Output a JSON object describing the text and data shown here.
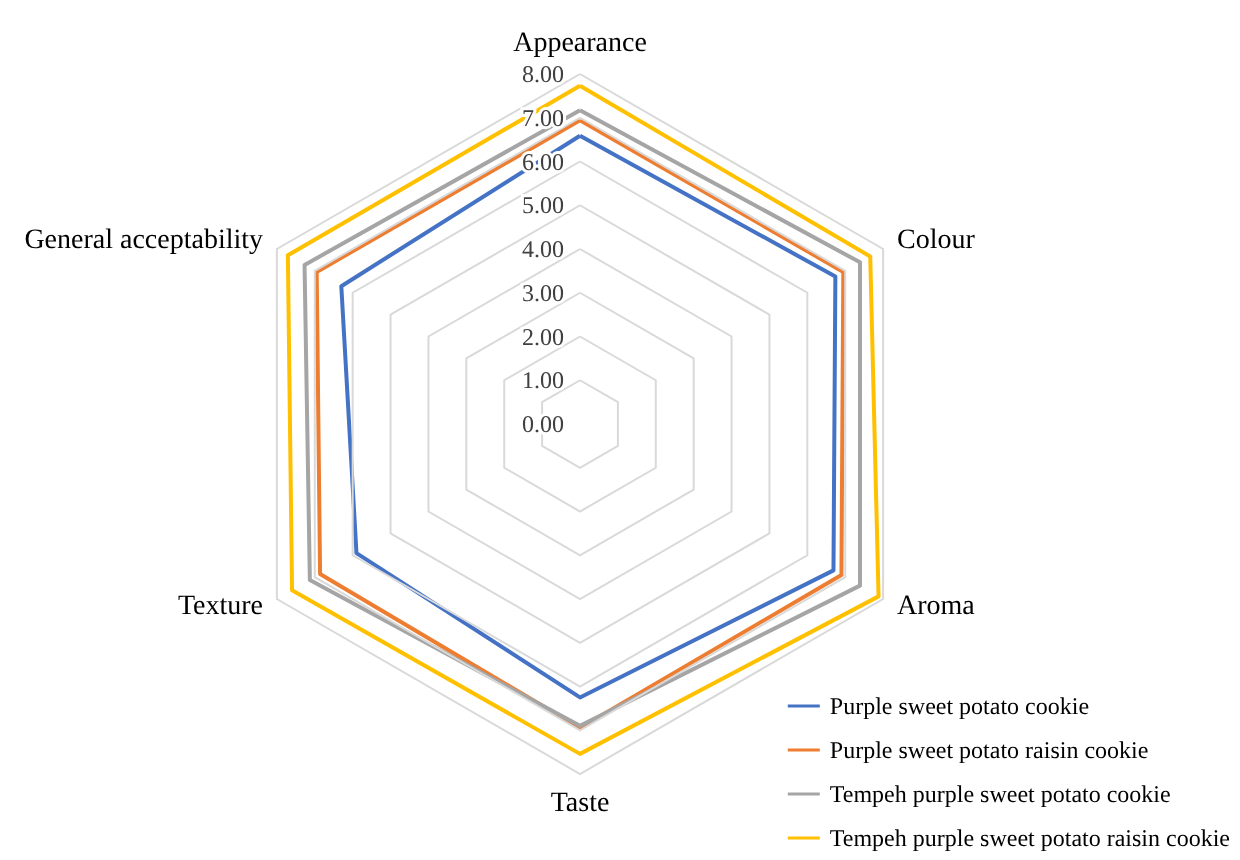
{
  "chart_data": {
    "type": "radar",
    "categories": [
      "Appearance",
      "Colour",
      "Aroma",
      "Taste",
      "Texture",
      "General acceptability"
    ],
    "series": [
      {
        "name": "Purple sweet potato cookie",
        "color": "#4472c4",
        "values": [
          6.59,
          6.74,
          6.69,
          6.25,
          5.9,
          6.3
        ]
      },
      {
        "name": "Purple sweet potato raisin cookie",
        "color": "#ed7d31",
        "values": [
          6.94,
          6.95,
          6.9,
          6.95,
          6.86,
          6.95
        ]
      },
      {
        "name": "Tempeh purple sweet potato cookie",
        "color": "#a5a5a5",
        "values": [
          7.17,
          7.39,
          7.39,
          6.9,
          7.13,
          7.27
        ]
      },
      {
        "name": "Tempeh purple sweet potato raisin cookie",
        "color": "#ffc000",
        "values": [
          7.73,
          7.66,
          7.88,
          7.54,
          7.6,
          7.71
        ]
      }
    ],
    "ylim": [
      0,
      8
    ],
    "yticks": [
      {
        "value": 0,
        "label": "0.00"
      },
      {
        "value": 1,
        "label": "1.00"
      },
      {
        "value": 2,
        "label": "2.00"
      },
      {
        "value": 3,
        "label": "3.00"
      },
      {
        "value": 4,
        "label": "4.00"
      },
      {
        "value": 5,
        "label": "5.00"
      },
      {
        "value": 6,
        "label": "6.00"
      },
      {
        "value": 7,
        "label": "7.00"
      },
      {
        "value": 8,
        "label": "8.00"
      }
    ],
    "legend": "bottom right",
    "marker": "none"
  }
}
